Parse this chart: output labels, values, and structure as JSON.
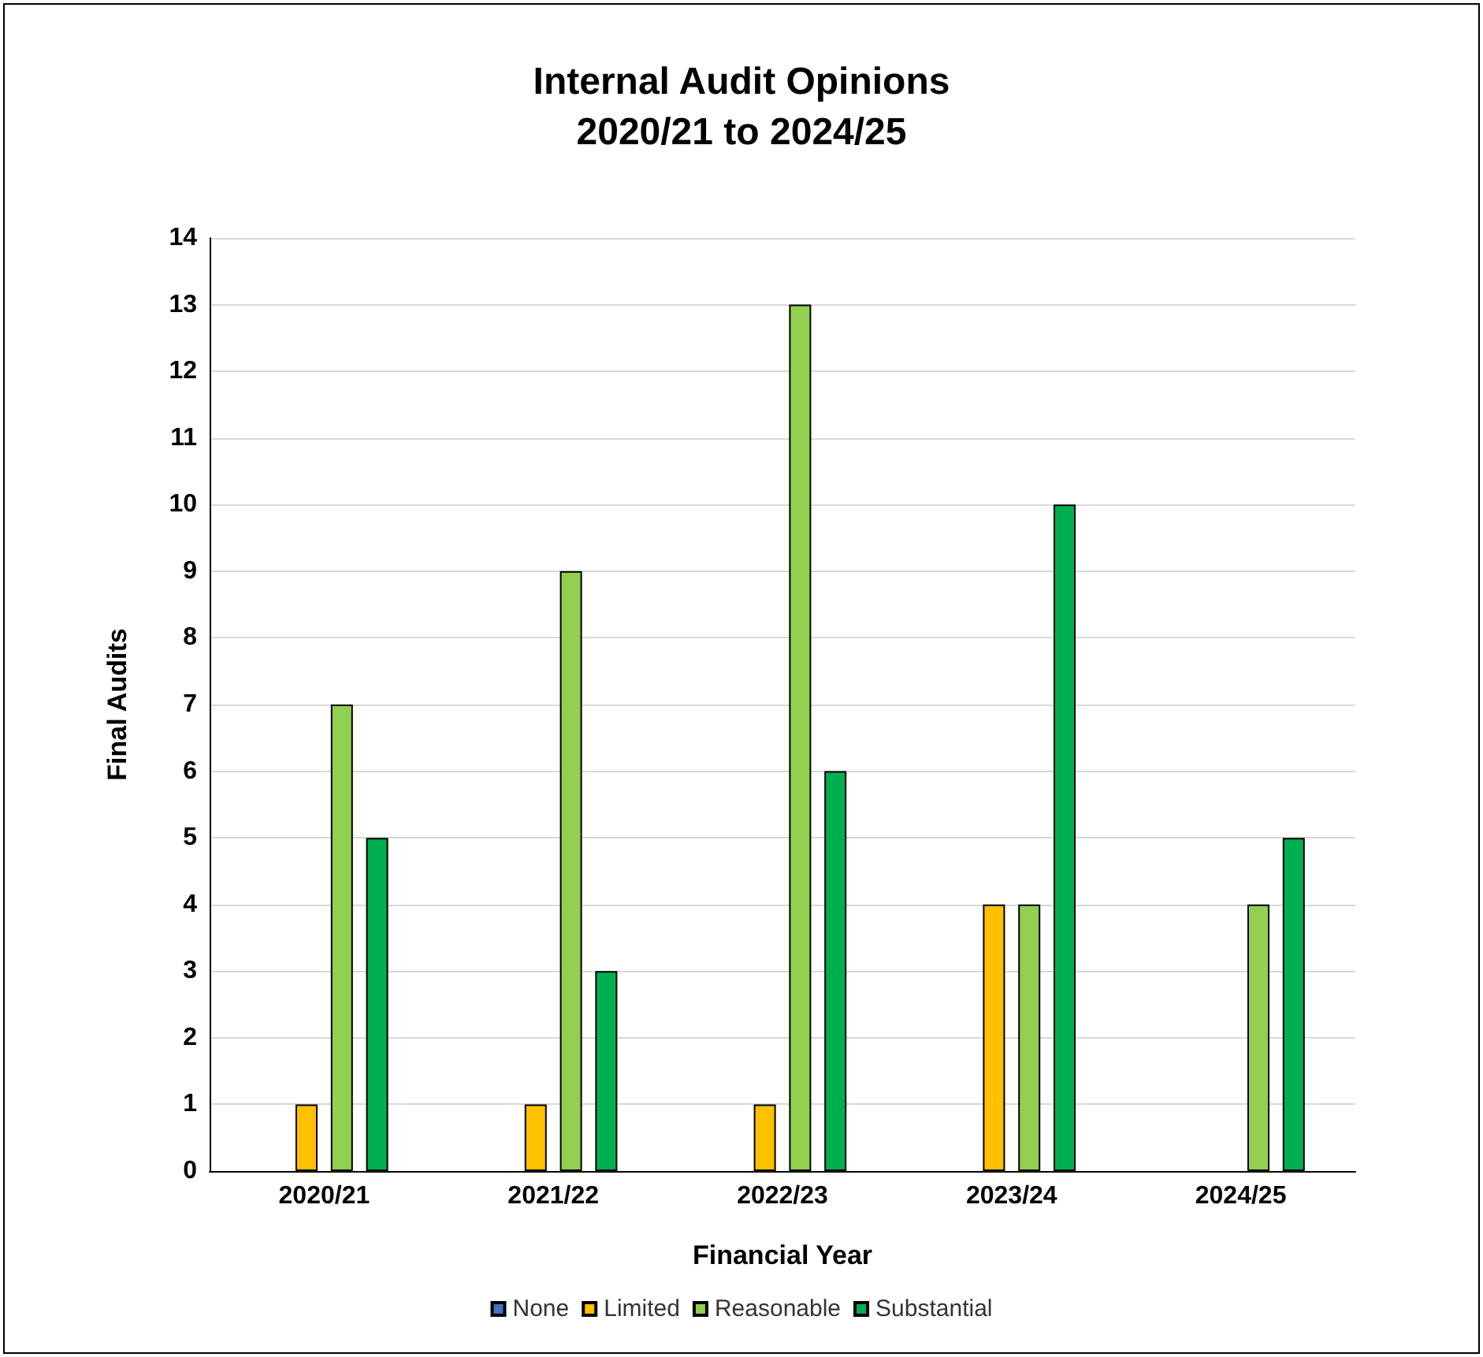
{
  "chart_data": {
    "type": "bar",
    "title": "Internal Audit Opinions\n2020/21 to 2024/25",
    "xlabel": "Financial Year",
    "ylabel": "Final Audits",
    "categories": [
      "2020/21",
      "2021/22",
      "2022/23",
      "2023/24",
      "2024/25"
    ],
    "series": [
      {
        "name": "None",
        "color": "#4472c4",
        "values": [
          0,
          0,
          0,
          0,
          0
        ]
      },
      {
        "name": "Limited",
        "color": "#ffc000",
        "values": [
          1,
          1,
          1,
          4,
          0
        ]
      },
      {
        "name": "Reasonable",
        "color": "#92d050",
        "values": [
          7,
          9,
          13,
          4,
          4
        ]
      },
      {
        "name": "Substantial",
        "color": "#00b050",
        "values": [
          5,
          3,
          6,
          10,
          5
        ]
      }
    ],
    "ylim": [
      0,
      14
    ],
    "yticks": [
      0,
      1,
      2,
      3,
      4,
      5,
      6,
      7,
      8,
      9,
      10,
      11,
      12,
      13,
      14
    ],
    "grid": "y",
    "legend": "bottom"
  }
}
